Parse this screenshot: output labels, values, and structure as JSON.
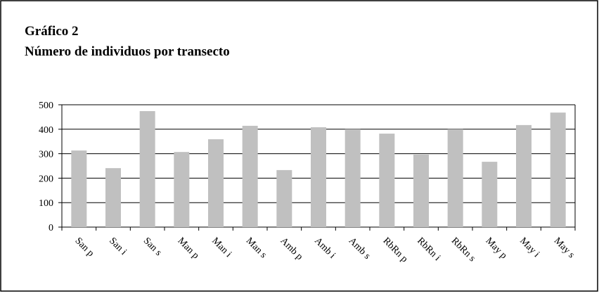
{
  "chart_data": {
    "type": "bar",
    "title": "Gráfico 2",
    "subtitle": "Número de individuos por transecto",
    "categories": [
      "San p",
      "San i",
      "San s",
      "Man p",
      "Man i",
      "Man s",
      "Amb p",
      "Amb i",
      "Amb s",
      "RbRn p",
      "RbRn i",
      "RbRn s",
      "May p",
      "May i",
      "May s"
    ],
    "values": [
      313,
      241,
      474,
      307,
      359,
      414,
      233,
      408,
      400,
      382,
      296,
      400,
      267,
      417,
      468
    ],
    "color": "#c0c0c0",
    "ylim": [
      0,
      500
    ],
    "yticks": [
      0,
      100,
      200,
      300,
      400,
      500
    ],
    "grid": true
  }
}
